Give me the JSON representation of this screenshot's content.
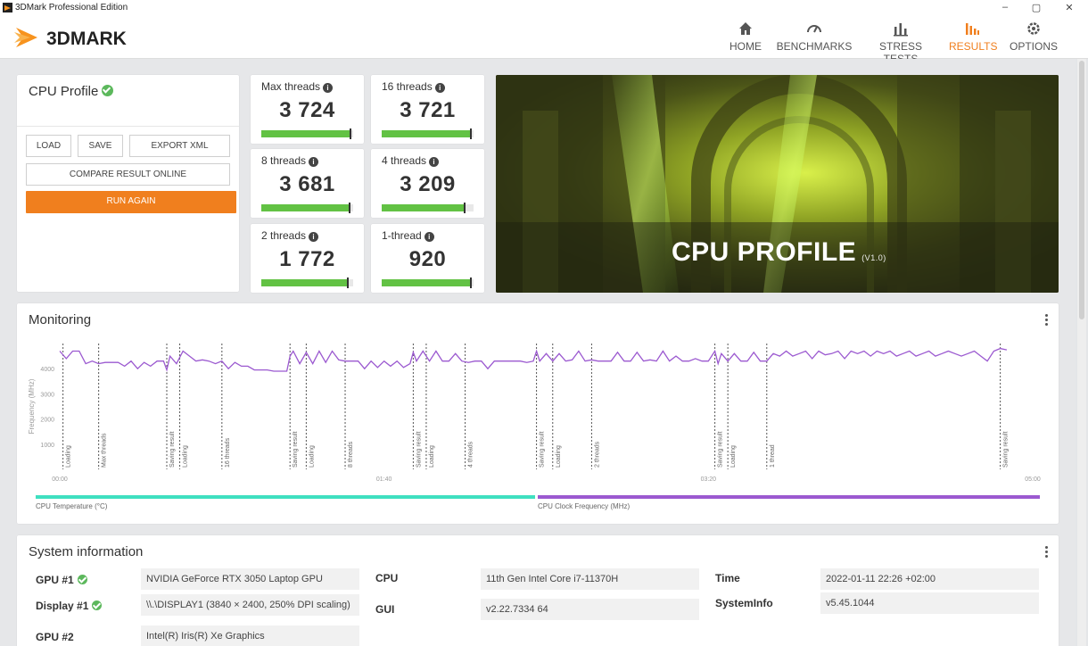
{
  "window": {
    "title": "3DMark Professional Edition",
    "minimize": "–",
    "maximize": "▢",
    "close": "✕"
  },
  "header": {
    "logo_text": "3DMARK",
    "nav": [
      {
        "label": "HOME",
        "icon": "home-icon"
      },
      {
        "label": "BENCHMARKS",
        "icon": "gauge-icon"
      },
      {
        "label": "STRESS TESTS",
        "icon": "stress-bars-icon"
      },
      {
        "label": "RESULTS",
        "icon": "results-bars-icon",
        "active": true
      },
      {
        "label": "OPTIONS",
        "icon": "gear-icon"
      }
    ]
  },
  "profile": {
    "title": "CPU Profile",
    "buttons": {
      "load": "LOAD",
      "save": "SAVE",
      "export": "EXPORT XML",
      "compare": "COMPARE RESULT ONLINE",
      "run": "RUN AGAIN"
    }
  },
  "scores": [
    {
      "label": "Max threads",
      "score": "3 724",
      "fill": 0.97
    },
    {
      "label": "16 threads",
      "score": "3 721",
      "fill": 0.97
    },
    {
      "label": "8 threads",
      "score": "3 681",
      "fill": 0.96
    },
    {
      "label": "4 threads",
      "score": "3 209",
      "fill": 0.9
    },
    {
      "label": "2 threads",
      "score": "1 772",
      "fill": 0.94
    },
    {
      "label": "1-thread",
      "score": "920",
      "fill": 0.97
    }
  ],
  "hero": {
    "title": "CPU PROFILE",
    "version": "(V1.0)"
  },
  "monitoring": {
    "title": "Monitoring",
    "chart_data": {
      "type": "line",
      "ylabel": "Frequency (MHz)",
      "ylim": [
        0,
        5000
      ],
      "yticks": [
        "1000",
        "2000",
        "3000",
        "4000"
      ],
      "xticks": [
        "00:00",
        "01:40",
        "03:20",
        "05:00"
      ],
      "xlim_seconds": [
        0,
        300
      ],
      "markers": [
        {
          "label": "Loading",
          "t": 1
        },
        {
          "label": "Max threads",
          "t": 12
        },
        {
          "label": "Saving result",
          "t": 33
        },
        {
          "label": "Loading",
          "t": 37
        },
        {
          "label": "16 threads",
          "t": 50
        },
        {
          "label": "Saving result",
          "t": 71
        },
        {
          "label": "Loading",
          "t": 76
        },
        {
          "label": "8 threads",
          "t": 88
        },
        {
          "label": "Saving result",
          "t": 109
        },
        {
          "label": "Loading",
          "t": 113
        },
        {
          "label": "4 threads",
          "t": 125
        },
        {
          "label": "Saving result",
          "t": 147
        },
        {
          "label": "Loading",
          "t": 152
        },
        {
          "label": "2 threads",
          "t": 164
        },
        {
          "label": "Saving result",
          "t": 202
        },
        {
          "label": "Loading",
          "t": 206
        },
        {
          "label": "1 thread",
          "t": 218
        },
        {
          "label": "Saving result",
          "t": 290
        }
      ],
      "series": [
        {
          "color": "#9b59d0",
          "x": [
            0,
            2,
            4,
            6,
            8,
            10,
            12,
            14,
            16,
            18,
            20,
            22,
            24,
            26,
            28,
            30,
            32,
            33,
            34,
            36,
            38,
            40,
            42,
            44,
            46,
            48,
            50,
            52,
            54,
            56,
            58,
            60,
            62,
            64,
            66,
            68,
            70,
            71,
            72,
            74,
            76,
            78,
            80,
            82,
            84,
            86,
            88,
            90,
            92,
            94,
            96,
            98,
            100,
            102,
            104,
            106,
            108,
            109,
            110,
            112,
            114,
            116,
            118,
            120,
            122,
            124,
            126,
            128,
            130,
            132,
            134,
            136,
            138,
            140,
            142,
            144,
            146,
            147,
            148,
            150,
            152,
            154,
            156,
            158,
            160,
            162,
            164,
            166,
            168,
            170,
            172,
            174,
            176,
            178,
            180,
            182,
            184,
            186,
            188,
            190,
            192,
            194,
            196,
            198,
            200,
            202,
            203,
            204,
            206,
            208,
            210,
            212,
            214,
            216,
            218,
            220,
            222,
            224,
            226,
            228,
            230,
            232,
            234,
            236,
            238,
            240,
            242,
            244,
            246,
            248,
            250,
            252,
            254,
            256,
            258,
            260,
            262,
            264,
            266,
            268,
            270,
            272,
            274,
            276,
            278,
            280,
            282,
            284,
            286,
            288,
            290,
            292
          ],
          "y": [
            4700,
            4400,
            4700,
            4700,
            4200,
            4300,
            4200,
            4250,
            4250,
            4250,
            4100,
            4300,
            4000,
            4250,
            4100,
            4300,
            4300,
            3950,
            4500,
            4200,
            4700,
            4500,
            4300,
            4350,
            4300,
            4200,
            4300,
            4000,
            4250,
            4100,
            4100,
            3950,
            3950,
            3950,
            3900,
            3900,
            3900,
            4500,
            4700,
            4200,
            4650,
            4200,
            4700,
            4250,
            4700,
            4350,
            4300,
            4300,
            4300,
            4000,
            4300,
            4050,
            4300,
            4100,
            4300,
            4050,
            4200,
            4650,
            4300,
            4700,
            4300,
            4700,
            4300,
            4300,
            4600,
            4300,
            4250,
            4300,
            4300,
            4000,
            4300,
            4300,
            4300,
            4300,
            4300,
            4250,
            4300,
            4700,
            4300,
            4600,
            4300,
            4600,
            4300,
            4350,
            4700,
            4300,
            4350,
            4300,
            4300,
            4300,
            4650,
            4300,
            4300,
            4650,
            4300,
            4350,
            4300,
            4700,
            4300,
            4500,
            4300,
            4300,
            4400,
            4300,
            4300,
            4700,
            4200,
            4600,
            4300,
            4600,
            4300,
            4300,
            4650,
            4300,
            4300,
            4600,
            4500,
            4700,
            4500,
            4600,
            4700,
            4400,
            4700,
            4550,
            4600,
            4700,
            4400,
            4700,
            4600,
            4700,
            4500,
            4700,
            4600,
            4700,
            4500,
            4600,
            4700,
            4500,
            4600,
            4700,
            4500,
            4600,
            4700,
            4600,
            4500,
            4600,
            4700,
            4500,
            4300,
            4700,
            4800,
            4750
          ]
        }
      ],
      "legend": [
        {
          "label": "CPU Temperature (°C)",
          "color": "#3fe0c0"
        },
        {
          "label": "CPU Clock Frequency (MHz)",
          "color": "#9b59d0"
        }
      ]
    }
  },
  "system": {
    "title": "System information",
    "rows": [
      {
        "label": "GPU #1",
        "value": "NVIDIA GeForce RTX 3050 Laptop GPU",
        "check": true
      },
      {
        "label": "Display #1",
        "value": "\\\\.\\DISPLAY1 (3840 × 2400, 250% DPI scaling)",
        "check": true
      },
      {
        "label": "GPU #2",
        "value": "Intel(R) Iris(R) Xe Graphics",
        "check": false
      }
    ],
    "mid": [
      {
        "label": "CPU",
        "value": "11th Gen Intel Core i7-11370H"
      },
      {
        "label": "GUI",
        "value": "v2.22.7334 64"
      }
    ],
    "right": [
      {
        "label": "Time",
        "value": "2022-01-11 22:26 +02:00"
      },
      {
        "label": "SystemInfo",
        "value": "v5.45.1044"
      }
    ]
  }
}
